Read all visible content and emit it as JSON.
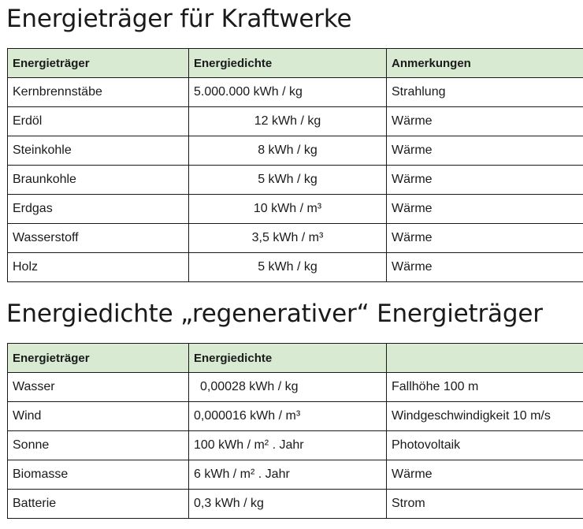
{
  "section1": {
    "title": "Energieträger für Kraftwerke",
    "headers": [
      "Energieträger",
      "Energiedichte",
      "Anmerkungen"
    ],
    "rows": [
      [
        "Kernbrennstäbe",
        "5.000.000 kWh / kg",
        "Strahlung"
      ],
      [
        "Erdöl",
        "12 kWh / kg",
        "Wärme"
      ],
      [
        "Steinkohle",
        "8 kWh / kg",
        "Wärme"
      ],
      [
        "Braunkohle",
        "5 kWh / kg",
        "Wärme"
      ],
      [
        "Erdgas",
        "10 kWh / m³",
        "Wärme"
      ],
      [
        "Wasserstoff",
        "3,5 kWh / m³",
        "Wärme"
      ],
      [
        "Holz",
        "5 kWh / kg",
        "Wärme"
      ]
    ]
  },
  "section2": {
    "title": "Energiedichte „regenerativer“ Energieträger",
    "headers": [
      "Energieträger",
      "Energiedichte",
      ""
    ],
    "rows": [
      [
        "Wasser",
        "0,00028 kWh / kg",
        "Fallhöhe 100 m"
      ],
      [
        "Wind",
        "0,000016 kWh / m³",
        "Windgeschwindigkeit 10 m/s"
      ],
      [
        "Sonne",
        "100 kWh / m² . Jahr",
        "Photovoltaik"
      ],
      [
        "Biomasse",
        "6 kWh / m² . Jahr",
        "Wärme"
      ],
      [
        "Batterie",
        "0,3 kWh / kg",
        "Strom"
      ]
    ]
  }
}
